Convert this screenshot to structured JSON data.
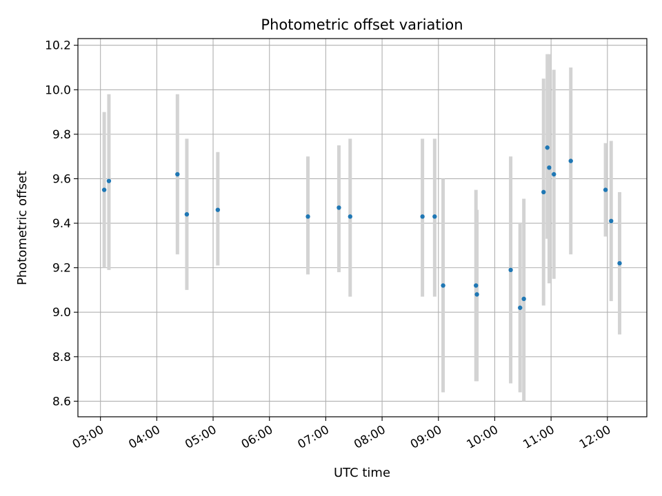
{
  "chart_data": {
    "type": "scatter",
    "title": "Photometric offset variation",
    "xlabel": "UTC time",
    "ylabel": "Photometric offset",
    "grid": true,
    "x_unit": "hours UTC",
    "xlim": [
      2.6,
      12.7
    ],
    "ylim": [
      8.53,
      10.23
    ],
    "x_ticks": [
      3,
      4,
      5,
      6,
      7,
      8,
      9,
      10,
      11,
      12
    ],
    "x_tick_labels": [
      "03:00",
      "04:00",
      "05:00",
      "06:00",
      "07:00",
      "08:00",
      "09:00",
      "10:00",
      "11:00",
      "12:00"
    ],
    "y_ticks": [
      8.6,
      8.8,
      9.0,
      9.2,
      9.4,
      9.6,
      9.8,
      10.0,
      10.2
    ],
    "y_tick_labels": [
      "8.6",
      "8.8",
      "9.0",
      "9.2",
      "9.4",
      "9.6",
      "9.8",
      "10.0",
      "10.2"
    ],
    "series": [
      {
        "marker_color": "#1f77b4",
        "errorbar_color": "#d3d3d3",
        "points": [
          {
            "time": "03:04",
            "y": 9.55,
            "ylo": 9.2,
            "yhi": 9.9
          },
          {
            "time": "03:09",
            "y": 9.59,
            "ylo": 9.19,
            "yhi": 9.98
          },
          {
            "time": "04:22",
            "y": 9.62,
            "ylo": 9.26,
            "yhi": 9.98
          },
          {
            "time": "04:32",
            "y": 9.44,
            "ylo": 9.1,
            "yhi": 9.78
          },
          {
            "time": "05:05",
            "y": 9.46,
            "ylo": 9.21,
            "yhi": 9.72
          },
          {
            "time": "06:41",
            "y": 9.43,
            "ylo": 9.17,
            "yhi": 9.7
          },
          {
            "time": "07:14",
            "y": 9.47,
            "ylo": 9.18,
            "yhi": 9.75
          },
          {
            "time": "07:26",
            "y": 9.43,
            "ylo": 9.07,
            "yhi": 9.78
          },
          {
            "time": "08:43",
            "y": 9.43,
            "ylo": 9.07,
            "yhi": 9.78
          },
          {
            "time": "08:56",
            "y": 9.43,
            "ylo": 9.07,
            "yhi": 9.78
          },
          {
            "time": "09:05",
            "y": 9.12,
            "ylo": 8.64,
            "yhi": 9.6
          },
          {
            "time": "09:40",
            "y": 9.12,
            "ylo": 8.69,
            "yhi": 9.55
          },
          {
            "time": "09:41",
            "y": 9.08,
            "ylo": 8.69,
            "yhi": 9.46
          },
          {
            "time": "10:17",
            "y": 9.19,
            "ylo": 8.68,
            "yhi": 9.7
          },
          {
            "time": "10:27",
            "y": 9.02,
            "ylo": 8.64,
            "yhi": 9.4
          },
          {
            "time": "10:31",
            "y": 9.06,
            "ylo": 8.6,
            "yhi": 9.51
          },
          {
            "time": "10:52",
            "y": 9.54,
            "ylo": 9.03,
            "yhi": 10.05
          },
          {
            "time": "10:56",
            "y": 9.74,
            "ylo": 9.33,
            "yhi": 10.16
          },
          {
            "time": "10:58",
            "y": 9.65,
            "ylo": 9.13,
            "yhi": 10.16
          },
          {
            "time": "11:03",
            "y": 9.62,
            "ylo": 9.15,
            "yhi": 10.09
          },
          {
            "time": "11:21",
            "y": 9.68,
            "ylo": 9.26,
            "yhi": 10.1
          },
          {
            "time": "11:58",
            "y": 9.55,
            "ylo": 9.34,
            "yhi": 9.76
          },
          {
            "time": "12:04",
            "y": 9.41,
            "ylo": 9.05,
            "yhi": 9.77
          },
          {
            "time": "12:13",
            "y": 9.22,
            "ylo": 8.9,
            "yhi": 9.54
          }
        ]
      }
    ]
  }
}
